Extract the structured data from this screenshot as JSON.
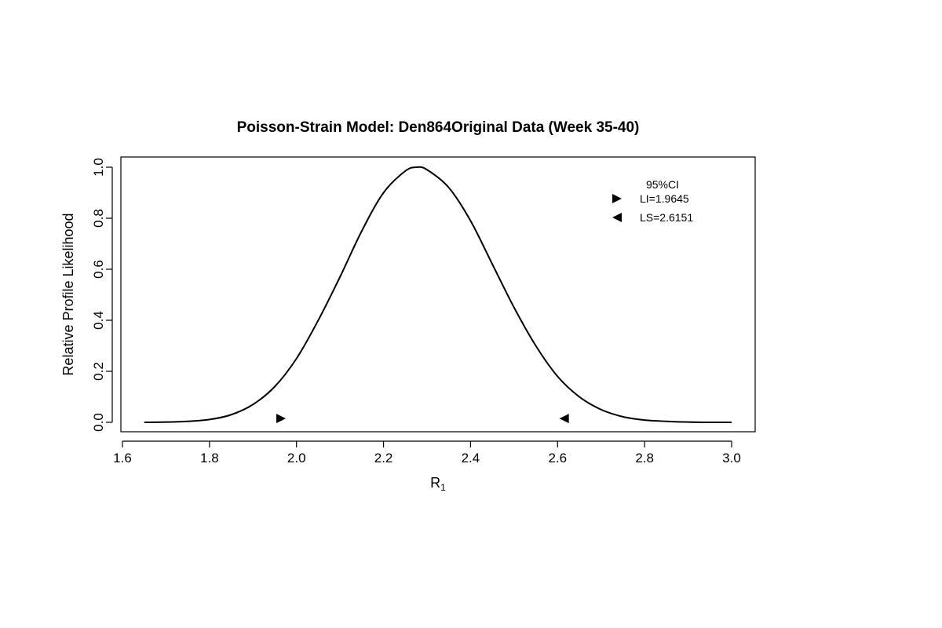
{
  "chart_data": {
    "type": "line",
    "title": "Poisson-Strain Model: Den864Original Data (Week 35-40)",
    "xlabel_main": "R",
    "xlabel_sub": "1",
    "ylabel": "Relative Profile Likelihood",
    "xlim": [
      1.6,
      3.0
    ],
    "ylim": [
      0.0,
      1.0
    ],
    "x_ticks": [
      "1.6",
      "1.8",
      "2.0",
      "2.2",
      "2.4",
      "2.6",
      "2.8",
      "3.0"
    ],
    "y_ticks": [
      "0.0",
      "0.2",
      "0.4",
      "0.6",
      "0.8",
      "1.0"
    ],
    "grid": false,
    "curve": {
      "mle": 2.276,
      "x": [
        1.65,
        1.7,
        1.75,
        1.8,
        1.85,
        1.9,
        1.95,
        2.0,
        2.05,
        2.1,
        2.15,
        2.2,
        2.25,
        2.276,
        2.3,
        2.35,
        2.4,
        2.45,
        2.5,
        2.55,
        2.6,
        2.65,
        2.7,
        2.75,
        2.8,
        2.85,
        2.9,
        2.95,
        3.0
      ],
      "y": [
        0.0,
        0.001,
        0.004,
        0.011,
        0.03,
        0.07,
        0.14,
        0.25,
        0.4,
        0.57,
        0.75,
        0.9,
        0.985,
        1.0,
        0.99,
        0.92,
        0.79,
        0.62,
        0.45,
        0.3,
        0.18,
        0.1,
        0.05,
        0.022,
        0.009,
        0.004,
        0.001,
        0.0,
        0.0
      ]
    },
    "ci_markers": [
      {
        "x": 1.9645,
        "y": 0.015,
        "direction": "right"
      },
      {
        "x": 2.6151,
        "y": 0.015,
        "direction": "left"
      }
    ],
    "legend": {
      "title": "95%CI",
      "placement": "top-right",
      "entries": [
        {
          "label": "LI=1.9645",
          "marker": "triangle-right"
        },
        {
          "label": "LS=2.6151",
          "marker": "triangle-left"
        }
      ]
    },
    "line_color": "#000000"
  }
}
